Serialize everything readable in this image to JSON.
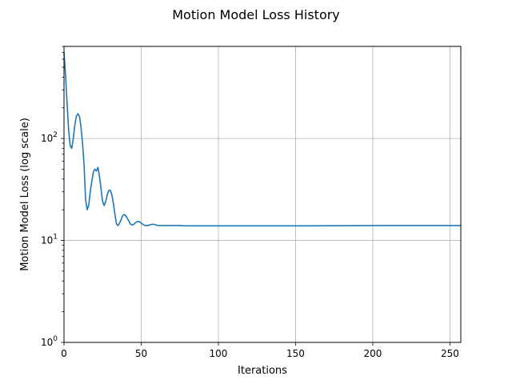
{
  "chart_data": {
    "type": "line",
    "title": "Motion Model Loss History",
    "xlabel": "Iterations",
    "ylabel": "Motion Model Loss (log scale)",
    "xlim": [
      0,
      257
    ],
    "ylim": [
      1,
      800
    ],
    "yscale": "log",
    "grid": true,
    "x_ticks": [
      0,
      50,
      100,
      150,
      200,
      250
    ],
    "x_tick_labels": [
      "0",
      "50",
      "100",
      "150",
      "200",
      "250"
    ],
    "y_ticks": [
      1,
      10,
      100
    ],
    "y_tick_labels": [
      "10^0",
      "10^1",
      "10^2"
    ],
    "series": [
      {
        "color": "#1f77b4",
        "x": [
          0,
          1,
          2,
          3,
          4,
          5,
          6,
          7,
          8,
          9,
          10,
          11,
          12,
          13,
          14,
          15,
          16,
          17,
          18,
          19,
          20,
          21,
          22,
          23,
          24,
          25,
          26,
          27,
          28,
          29,
          30,
          31,
          32,
          33,
          34,
          35,
          36,
          37,
          38,
          39,
          40,
          41,
          42,
          43,
          44,
          45,
          46,
          47,
          48,
          49,
          50,
          51,
          52,
          53,
          54,
          55,
          56,
          57,
          58,
          59,
          60,
          62,
          64,
          66,
          68,
          70,
          72,
          74,
          76,
          78,
          80,
          85,
          90,
          100,
          120,
          150,
          200,
          257
        ],
        "y": [
          700,
          420,
          220,
          120,
          85,
          80,
          100,
          135,
          165,
          175,
          165,
          130,
          90,
          55,
          25,
          20,
          22,
          30,
          38,
          47,
          50,
          48,
          52,
          42,
          32,
          24,
          22,
          24,
          28,
          31,
          31,
          28,
          23,
          18,
          14.5,
          14,
          14.8,
          16,
          17.5,
          18,
          17.5,
          16.5,
          15.5,
          14.5,
          14.2,
          14.3,
          14.8,
          15.2,
          15.4,
          15.2,
          14.8,
          14.4,
          14.1,
          14.0,
          14.0,
          14.1,
          14.3,
          14.4,
          14.4,
          14.3,
          14.1,
          14.0,
          14.0,
          14.0,
          14.0,
          14.0,
          14.0,
          14.0,
          14.0,
          13.9,
          13.9,
          13.9,
          13.9,
          13.9,
          13.9,
          13.9,
          14.0,
          14.0
        ]
      }
    ]
  }
}
